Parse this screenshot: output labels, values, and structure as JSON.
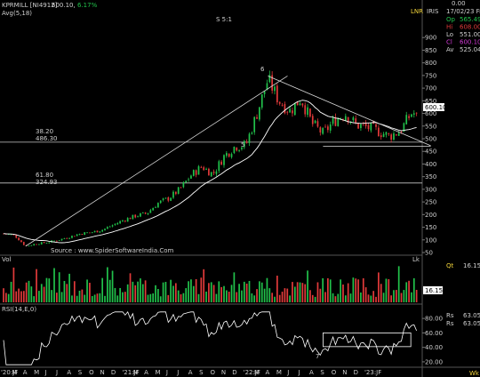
{
  "header": {
    "symbol": "KPRMILL [NI4912]",
    "price": "600.10,",
    "change": "6.17%",
    "ma_label": "Avg(5,18)",
    "split": "S 5:1",
    "exchange": "LNR",
    "source": "IRIS",
    "top_value": "0.00",
    "date": "17/02/23 Fri"
  },
  "ohlc": [
    {
      "key": "Op",
      "value": "565.49",
      "color": "#21c24b"
    },
    {
      "key": "Hi",
      "value": "608.00",
      "color": "#e13a3a"
    },
    {
      "key": "Lo",
      "value": "551.00",
      "color": "#cfcfcf"
    },
    {
      "key": "Cl",
      "value": "600.10",
      "color": "#d23ad6"
    },
    {
      "key": "Av",
      "value": "525.04",
      "color": "#cfcfcf"
    }
  ],
  "fib_levels": [
    {
      "pct": "38.20",
      "value": "486.30",
      "price": 486.3
    },
    {
      "pct": "61.80",
      "value": "324.93",
      "price": 324.93
    }
  ],
  "price_tag": "600.10",
  "source_credit": "Source : www.SpiderSoftwareIndia.Com",
  "annotations": {
    "peak": "6",
    "low": "5",
    "rsi_mark": "7"
  },
  "volume": {
    "label": "Vol",
    "unit": "Lk",
    "qt_label": "Qt",
    "qt_value": "16.15",
    "tag": "16.15"
  },
  "rsi": {
    "label": "RSI(14,E,0)",
    "rs_label": "Rs",
    "rs_value1": "63.05",
    "rs_value2": "63.05"
  },
  "footer_note": "Wk",
  "chart_data": [
    {
      "type": "candlestick",
      "title": "KPRMILL [NI4912] weekly",
      "ylim": [
        50,
        950
      ],
      "y_ticks": [
        50,
        100,
        150,
        200,
        250,
        300,
        350,
        400,
        450,
        500,
        550,
        600,
        650,
        700,
        750,
        800,
        850,
        900
      ],
      "x_ticks": [
        "'20:JF",
        "M",
        "A",
        "M",
        "J",
        "J",
        "A",
        "S",
        "O",
        "N",
        "D",
        "'21:JF",
        "M",
        "A",
        "M",
        "J",
        "J",
        "A",
        "S",
        "O",
        "N",
        "D",
        "'22:JF",
        "M",
        "A",
        "M",
        "J",
        "J",
        "A",
        "S",
        "O",
        "N",
        "D",
        "'23:JF"
      ],
      "close_path": [
        [
          "2020-01",
          125
        ],
        [
          "2020-02",
          118
        ],
        [
          "2020-03",
          75
        ],
        [
          "2020-04",
          85
        ],
        [
          "2020-05",
          90
        ],
        [
          "2020-06",
          100
        ],
        [
          "2020-07",
          112
        ],
        [
          "2020-08",
          125
        ],
        [
          "2020-09",
          130
        ],
        [
          "2020-10",
          140
        ],
        [
          "2020-11",
          160
        ],
        [
          "2020-12",
          180
        ],
        [
          "2021-01",
          195
        ],
        [
          "2021-02",
          205
        ],
        [
          "2021-03",
          245
        ],
        [
          "2021-04",
          265
        ],
        [
          "2021-05",
          300
        ],
        [
          "2021-06",
          355
        ],
        [
          "2021-07",
          390
        ],
        [
          "2021-08",
          360
        ],
        [
          "2021-09",
          430
        ],
        [
          "2021-10",
          470
        ],
        [
          "2021-11",
          475
        ],
        [
          "2021-12",
          600
        ],
        [
          "2022-01",
          735
        ],
        [
          "2022-02",
          650
        ],
        [
          "2022-03",
          610
        ],
        [
          "2022-04",
          660
        ],
        [
          "2022-05",
          560
        ],
        [
          "2022-06",
          520
        ],
        [
          "2022-07",
          570
        ],
        [
          "2022-08",
          600
        ],
        [
          "2022-09",
          555
        ],
        [
          "2022-10",
          545
        ],
        [
          "2022-11",
          530
        ],
        [
          "2022-12",
          510
        ],
        [
          "2023-01",
          530
        ],
        [
          "2023-02",
          600
        ]
      ],
      "trendlines": [
        {
          "name": "uptrend",
          "from": [
            "2020-03",
            75
          ],
          "to": [
            "2022-01",
            748
          ]
        },
        {
          "name": "downtrend",
          "from": [
            "2022-01",
            748
          ],
          "to": [
            "2023-02",
            490
          ]
        },
        {
          "name": "support",
          "from": [
            "2022-06",
            470
          ],
          "to": [
            "2023-02",
            470
          ]
        }
      ]
    },
    {
      "type": "bar",
      "title": "Vol",
      "unit": "Lk",
      "last_value": 16.15
    },
    {
      "type": "line",
      "title": "RSI(14,E,0)",
      "ylim": [
        15,
        90
      ],
      "y_ticks": [
        20,
        40,
        60,
        80
      ],
      "last_value": 63.05
    }
  ]
}
